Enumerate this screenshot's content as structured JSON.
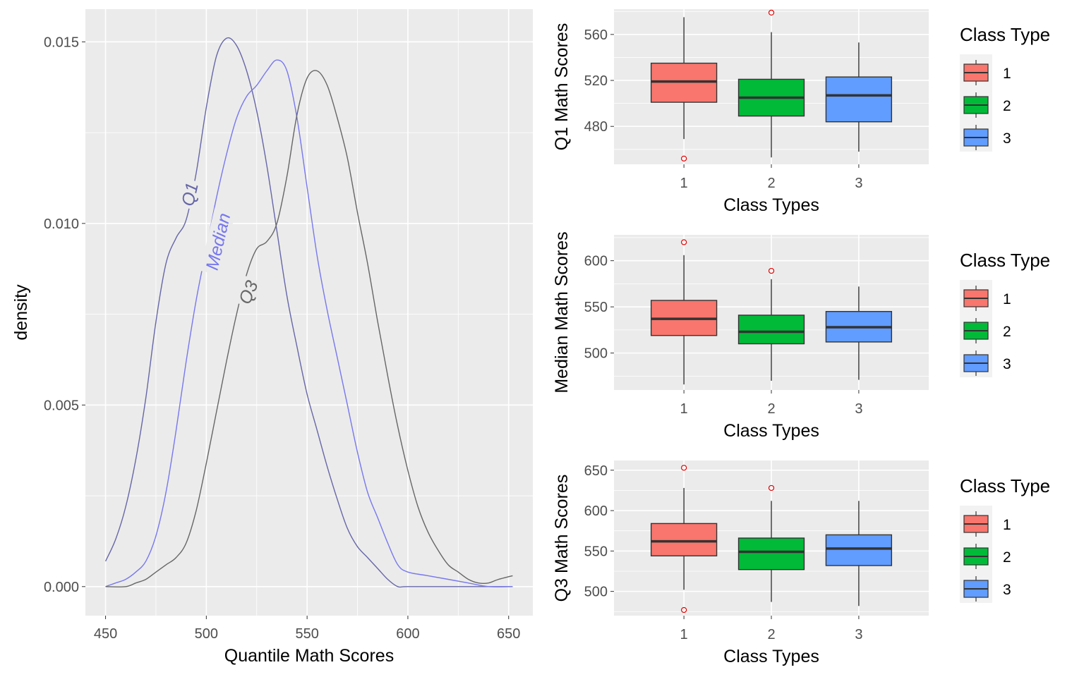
{
  "chart_data": [
    {
      "type": "line",
      "subtype": "density",
      "xlabel": "Quantile Math Scores",
      "ylabel": "density",
      "xlim": [
        440,
        662
      ],
      "ylim": [
        -0.0008,
        0.0159
      ],
      "x_ticks": [
        450,
        500,
        550,
        600,
        650
      ],
      "x_tick_labels": [
        "450",
        "500",
        "550",
        "600",
        "650"
      ],
      "y_ticks": [
        0.0,
        0.005,
        0.01,
        0.015
      ],
      "y_tick_labels": [
        "0.000",
        "0.005",
        "0.010",
        "0.015"
      ],
      "grid": true,
      "series": [
        {
          "name": "Q1",
          "color": "#6666a8",
          "label_pos": [
            492,
            0.0108
          ],
          "points": [
            [
              450,
              0.0007
            ],
            [
              455,
              0.0013
            ],
            [
              460,
              0.0022
            ],
            [
              465,
              0.0035
            ],
            [
              470,
              0.0052
            ],
            [
              475,
              0.0073
            ],
            [
              480,
              0.0089
            ],
            [
              485,
              0.0096
            ],
            [
              490,
              0.0101
            ],
            [
              495,
              0.0114
            ],
            [
              500,
              0.0132
            ],
            [
              505,
              0.0146
            ],
            [
              510,
              0.0151
            ],
            [
              515,
              0.0149
            ],
            [
              520,
              0.0142
            ],
            [
              525,
              0.0131
            ],
            [
              530,
              0.0116
            ],
            [
              535,
              0.0098
            ],
            [
              540,
              0.008
            ],
            [
              545,
              0.0066
            ],
            [
              550,
              0.0053
            ],
            [
              555,
              0.0043
            ],
            [
              560,
              0.0033
            ],
            [
              565,
              0.0024
            ],
            [
              570,
              0.0016
            ],
            [
              575,
              0.0011
            ],
            [
              580,
              0.0008
            ],
            [
              585,
              0.0005
            ],
            [
              590,
              0.0002
            ],
            [
              595,
              0.0
            ],
            [
              600,
              0.0
            ],
            [
              625,
              0.0
            ],
            [
              652,
              0.0
            ]
          ]
        },
        {
          "name": "Median",
          "color": "#7777ee",
          "label_pos": [
            506,
            0.0095
          ],
          "points": [
            [
              450,
              0.0
            ],
            [
              455,
              0.0001
            ],
            [
              460,
              0.0002
            ],
            [
              465,
              0.0004
            ],
            [
              470,
              0.0007
            ],
            [
              475,
              0.0014
            ],
            [
              480,
              0.0026
            ],
            [
              485,
              0.0043
            ],
            [
              490,
              0.0062
            ],
            [
              495,
              0.0079
            ],
            [
              500,
              0.0093
            ],
            [
              505,
              0.0107
            ],
            [
              510,
              0.0119
            ],
            [
              515,
              0.0129
            ],
            [
              520,
              0.0135
            ],
            [
              525,
              0.0138
            ],
            [
              530,
              0.0142
            ],
            [
              535,
              0.0145
            ],
            [
              540,
              0.0142
            ],
            [
              545,
              0.0129
            ],
            [
              550,
              0.011
            ],
            [
              555,
              0.0091
            ],
            [
              560,
              0.0076
            ],
            [
              565,
              0.0063
            ],
            [
              570,
              0.005
            ],
            [
              575,
              0.0037
            ],
            [
              580,
              0.0026
            ],
            [
              585,
              0.0019
            ],
            [
              590,
              0.0012
            ],
            [
              595,
              0.0006
            ],
            [
              600,
              0.0004
            ],
            [
              610,
              0.0003
            ],
            [
              620,
              0.0002
            ],
            [
              630,
              0.0001
            ],
            [
              640,
              0.0
            ],
            [
              652,
              0.0
            ]
          ]
        },
        {
          "name": "Q3",
          "color": "#666666",
          "label_pos": [
            521,
            0.0081
          ],
          "points": [
            [
              450,
              0.0
            ],
            [
              460,
              0.0
            ],
            [
              465,
              0.0001
            ],
            [
              470,
              0.0002
            ],
            [
              475,
              0.0004
            ],
            [
              480,
              0.0006
            ],
            [
              485,
              0.0008
            ],
            [
              490,
              0.0012
            ],
            [
              495,
              0.0021
            ],
            [
              500,
              0.0034
            ],
            [
              505,
              0.0048
            ],
            [
              510,
              0.0062
            ],
            [
              515,
              0.0075
            ],
            [
              520,
              0.0086
            ],
            [
              525,
              0.0093
            ],
            [
              530,
              0.0095
            ],
            [
              535,
              0.01
            ],
            [
              540,
              0.0113
            ],
            [
              545,
              0.013
            ],
            [
              550,
              0.014
            ],
            [
              555,
              0.0142
            ],
            [
              560,
              0.0138
            ],
            [
              565,
              0.0129
            ],
            [
              570,
              0.0118
            ],
            [
              575,
              0.0103
            ],
            [
              580,
              0.0089
            ],
            [
              585,
              0.0073
            ],
            [
              590,
              0.0058
            ],
            [
              595,
              0.0044
            ],
            [
              600,
              0.0032
            ],
            [
              605,
              0.0022
            ],
            [
              610,
              0.0015
            ],
            [
              615,
              0.001
            ],
            [
              620,
              0.0006
            ],
            [
              625,
              0.0004
            ],
            [
              630,
              0.0002
            ],
            [
              635,
              0.0001
            ],
            [
              640,
              0.0001
            ],
            [
              645,
              0.0002
            ],
            [
              652,
              0.0003
            ]
          ]
        }
      ]
    },
    {
      "type": "box",
      "xlabel": "Class Types",
      "ylabel": "Q1 Math Scores",
      "categories": [
        "1",
        "2",
        "3"
      ],
      "ylim": [
        447,
        582
      ],
      "y_ticks": [
        480,
        520,
        560
      ],
      "y_tick_labels": [
        "480",
        "520",
        "560"
      ],
      "legend_title": "Class Type",
      "boxes": [
        {
          "category": "1",
          "lower": 469,
          "q1": 501,
          "median": 519,
          "q3": 535,
          "upper": 575,
          "outliers": [
            452
          ]
        },
        {
          "category": "2",
          "lower": 453,
          "q1": 489,
          "median": 505,
          "q3": 521,
          "upper": 562,
          "outliers": [
            579
          ]
        },
        {
          "category": "3",
          "lower": 458,
          "q1": 484,
          "median": 507,
          "q3": 523,
          "upper": 553,
          "outliers": []
        }
      ]
    },
    {
      "type": "box",
      "xlabel": "Class Types",
      "ylabel": "Median Math Scores",
      "categories": [
        "1",
        "2",
        "3"
      ],
      "ylim": [
        460,
        628
      ],
      "y_ticks": [
        500,
        550,
        600
      ],
      "y_tick_labels": [
        "500",
        "550",
        "600"
      ],
      "legend_title": "Class Type",
      "boxes": [
        {
          "category": "1",
          "lower": 466,
          "q1": 519,
          "median": 537,
          "q3": 557,
          "upper": 606,
          "outliers": [
            620
          ]
        },
        {
          "category": "2",
          "lower": 470,
          "q1": 510,
          "median": 523,
          "q3": 541,
          "upper": 580,
          "outliers": [
            589
          ]
        },
        {
          "category": "3",
          "lower": 471,
          "q1": 512,
          "median": 528,
          "q3": 545,
          "upper": 572,
          "outliers": []
        }
      ]
    },
    {
      "type": "box",
      "xlabel": "Class Types",
      "ylabel": "Q3 Math Scores",
      "categories": [
        "1",
        "2",
        "3"
      ],
      "ylim": [
        470,
        662
      ],
      "y_ticks": [
        500,
        550,
        600,
        650
      ],
      "y_tick_labels": [
        "500",
        "550",
        "600",
        "650"
      ],
      "legend_title": "Class Type",
      "boxes": [
        {
          "category": "1",
          "lower": 502,
          "q1": 544,
          "median": 562,
          "q3": 584,
          "upper": 628,
          "outliers": [
            653,
            477
          ]
        },
        {
          "category": "2",
          "lower": 487,
          "q1": 527,
          "median": 549,
          "q3": 566,
          "upper": 612,
          "outliers": [
            628
          ]
        },
        {
          "category": "3",
          "lower": 482,
          "q1": 532,
          "median": 553,
          "q3": 570,
          "upper": 612,
          "outliers": []
        }
      ]
    }
  ],
  "legend": {
    "title": "Class Type",
    "items": [
      {
        "label": "1",
        "color": "#F8766D"
      },
      {
        "label": "2",
        "color": "#00BA38"
      },
      {
        "label": "3",
        "color": "#619CFF"
      }
    ]
  },
  "colors": {
    "panel": "#EBEBEB",
    "grid": "#FFFFFF",
    "outlier": "#E00000",
    "box_border": "#333333"
  }
}
